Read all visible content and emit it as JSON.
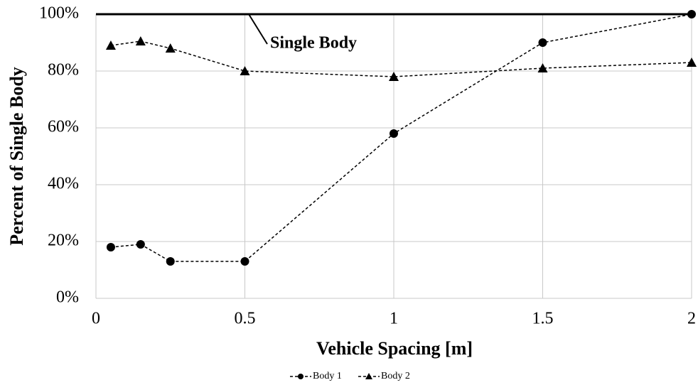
{
  "chart_data": {
    "type": "line",
    "x": [
      0.05,
      0.15,
      0.25,
      0.5,
      1,
      1.5,
      2
    ],
    "series": [
      {
        "name": "Body 1",
        "color": "#000000",
        "marker": "circle",
        "values": [
          18,
          19,
          13,
          13,
          58,
          90,
          100
        ]
      },
      {
        "name": "Body 2",
        "color": "#000000",
        "marker": "triangle",
        "values": [
          89,
          90.5,
          88,
          80,
          78,
          81,
          83
        ]
      }
    ],
    "xlabel": "Vehicle Spacing [m]",
    "ylabel": "Percent of Single Body",
    "xlim": [
      0,
      2
    ],
    "xticks": [
      0,
      0.5,
      1,
      1.5,
      2
    ],
    "ylim": [
      0,
      100
    ],
    "yticks": [
      {
        "value": 0,
        "label": "0%"
      },
      {
        "value": 20,
        "label": "20%"
      },
      {
        "value": 40,
        "label": "40%"
      },
      {
        "value": 60,
        "label": "60%"
      },
      {
        "value": 80,
        "label": "80%"
      },
      {
        "value": 100,
        "label": "100%"
      }
    ],
    "reference_line": {
      "label": "Single Body",
      "value": 100
    },
    "grid": true,
    "legend": "bottom"
  }
}
